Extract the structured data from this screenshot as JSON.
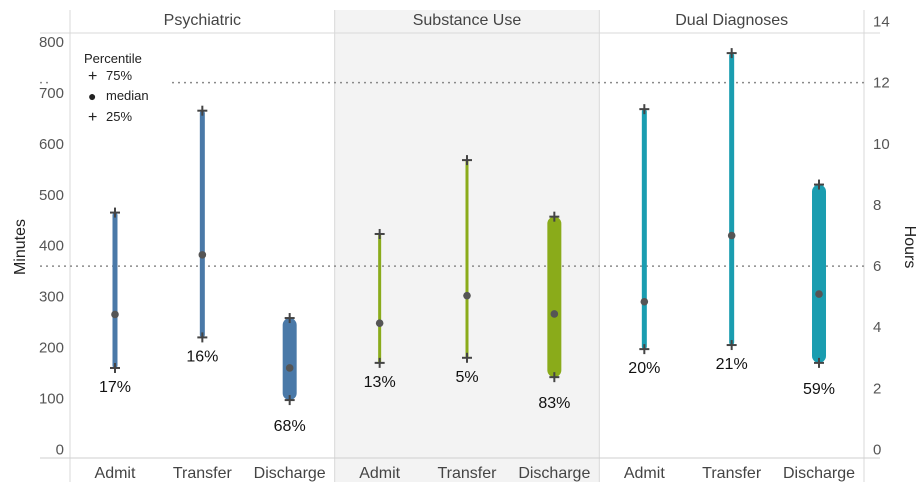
{
  "chart_data": {
    "type": "range",
    "y_left": {
      "label": "Minutes",
      "ticks": [
        0,
        100,
        200,
        300,
        400,
        500,
        600,
        700,
        800
      ],
      "range": [
        0,
        825
      ]
    },
    "y_right": {
      "label": "Hours",
      "ticks": [
        0,
        2,
        4,
        6,
        8,
        10,
        12,
        14
      ]
    },
    "reference_lines_minutes": [
      720,
      360
    ],
    "legend": {
      "title": "Percentile",
      "items": [
        {
          "symbol": "+",
          "label": "75%"
        },
        {
          "symbol": "●",
          "label": "median"
        },
        {
          "symbol": "+",
          "label": "25%"
        }
      ]
    },
    "panels": [
      {
        "title": "Psychiatric",
        "color": "#4a79a8",
        "shaded": false,
        "categories": [
          {
            "name": "Admit",
            "p25": 160,
            "median": 265,
            "p75": 465,
            "percent": "17%"
          },
          {
            "name": "Transfer",
            "p25": 220,
            "median": 382,
            "p75": 665,
            "percent": "16%"
          },
          {
            "name": "Discharge",
            "p25": 97,
            "median": 160,
            "p75": 258,
            "percent": "68%"
          }
        ]
      },
      {
        "title": "Substance Use",
        "color": "#8aab1a",
        "shaded": true,
        "categories": [
          {
            "name": "Admit",
            "p25": 170,
            "median": 248,
            "p75": 423,
            "percent": "13%"
          },
          {
            "name": "Transfer",
            "p25": 180,
            "median": 302,
            "p75": 568,
            "percent": "5%"
          },
          {
            "name": "Discharge",
            "p25": 142,
            "median": 266,
            "p75": 457,
            "percent": "83%"
          }
        ]
      },
      {
        "title": "Dual Diagnoses",
        "color": "#1a9db0",
        "shaded": false,
        "categories": [
          {
            "name": "Admit",
            "p25": 197,
            "median": 290,
            "p75": 668,
            "percent": "20%"
          },
          {
            "name": "Transfer",
            "p25": 205,
            "median": 420,
            "p75": 778,
            "percent": "21%"
          },
          {
            "name": "Discharge",
            "p25": 170,
            "median": 305,
            "p75": 520,
            "percent": "59%"
          }
        ]
      }
    ]
  }
}
